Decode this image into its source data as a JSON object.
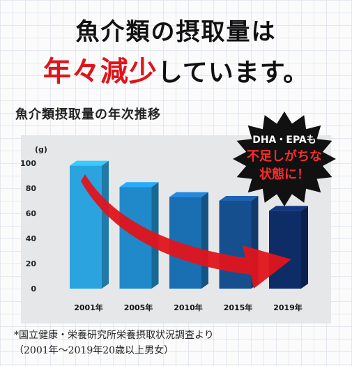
{
  "headline": {
    "line1": "魚介類の摂取量は",
    "line2_red": "年々減少",
    "line2_rest": "しています。"
  },
  "badge": {
    "line1": "DHA・EPAも",
    "line2": "不足しがちな",
    "line3": "状態に！"
  },
  "footnote": {
    "line1": "*国立健康・栄養研究所栄養摂取状況調査より",
    "line2": "（2001年〜2019年20歳以上男女）"
  },
  "colors": {
    "bars": [
      "#2aa3de",
      "#1f89c9",
      "#1a6fb2",
      "#164f8e",
      "#0e2c66"
    ],
    "arrow": "#e0141c",
    "badge_bg": "#111111",
    "badge_red": "#ff2b2b"
  },
  "chart_data": {
    "type": "bar",
    "title": "魚介類摂取量の年次推移",
    "unit_label": "(g)",
    "categories": [
      "2001年",
      "2005年",
      "2010年",
      "2015年",
      "2019年"
    ],
    "values": [
      98,
      81,
      73,
      70,
      62
    ],
    "yticks": [
      0,
      20,
      40,
      60,
      80,
      100
    ],
    "ylim": [
      0,
      100
    ],
    "annotation": "decreasing trend arrow from 2001 to 2019"
  }
}
